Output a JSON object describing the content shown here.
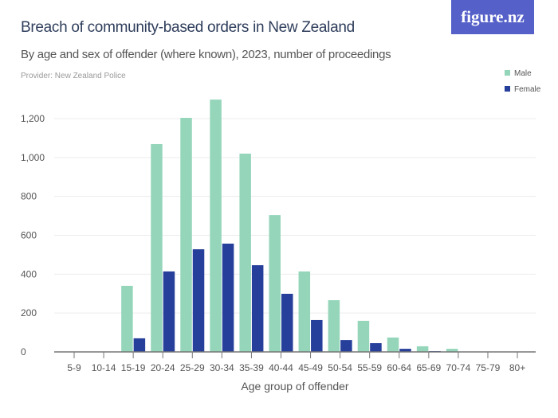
{
  "header": {
    "title": "Breach of community-based orders in New Zealand",
    "subtitle": "By age and sex of offender (where known), 2023, number of proceedings",
    "provider": "Provider: New Zealand Police",
    "logo": "figure.nz"
  },
  "chart_data": {
    "type": "bar",
    "xlabel": "Age group of offender",
    "ylabel": "",
    "ylim": [
      0,
      1200
    ],
    "yticks": [
      0,
      200,
      400,
      600,
      800,
      1000,
      1200
    ],
    "ytick_labels": [
      "0",
      "200",
      "400",
      "600",
      "800",
      "1,000",
      "1,200"
    ],
    "grid": true,
    "legend": "top-right",
    "categories": [
      "5-9",
      "10-14",
      "15-19",
      "20-24",
      "25-29",
      "30-34",
      "35-39",
      "40-44",
      "45-49",
      "50-54",
      "55-59",
      "60-64",
      "65-69",
      "70-74",
      "75-79",
      "80+"
    ],
    "series": [
      {
        "name": "Male",
        "color": "#95d6bb",
        "values": [
          0,
          0,
          340,
          1069,
          1204,
          1298,
          1020,
          704,
          414,
          266,
          160,
          74,
          29,
          16,
          1,
          0
        ]
      },
      {
        "name": "Female",
        "color": "#263f9a",
        "values": [
          0,
          0,
          70,
          414,
          528,
          557,
          446,
          299,
          164,
          61,
          45,
          16,
          4,
          2,
          0,
          0
        ]
      }
    ]
  }
}
